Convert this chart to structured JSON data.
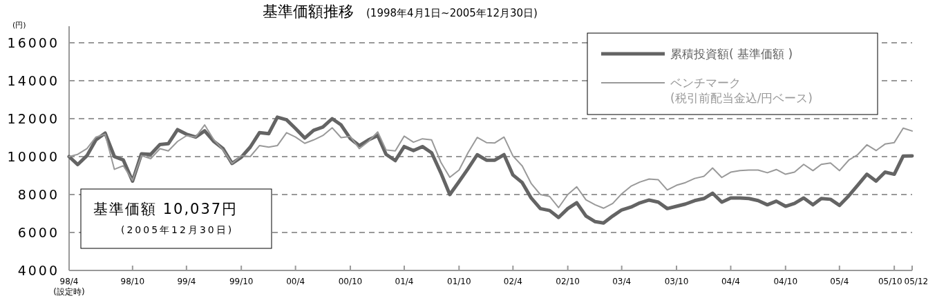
{
  "chart_data": {
    "type": "line",
    "title": "基準価額推移",
    "subtitle": "(1998年4月1日~2005年12月30日)",
    "ylabel": "(円)",
    "x": [
      "1998-04-01",
      "1998-04-30",
      "1998-05-31",
      "1998-06-30",
      "1998-07-31",
      "1998-08-31",
      "1998-09-30",
      "1998-10-31",
      "1998-11-30",
      "1998-12-31",
      "1999-01-31",
      "1999-02-28",
      "1999-03-31",
      "1999-04-30",
      "1999-05-31",
      "1999-06-30",
      "1999-07-31",
      "1999-08-31",
      "1999-09-30",
      "1999-10-31",
      "1999-11-30",
      "1999-12-31",
      "2000-01-31",
      "2000-02-29",
      "2000-03-31",
      "2000-04-30",
      "2000-05-31",
      "2000-06-30",
      "2000-07-31",
      "2000-08-31",
      "2000-09-30",
      "2000-10-31",
      "2000-11-30",
      "2000-12-31",
      "2001-01-31",
      "2001-02-28",
      "2001-03-31",
      "2001-04-30",
      "2001-05-31",
      "2001-06-30",
      "2001-07-31",
      "2001-08-31",
      "2001-09-30",
      "2001-10-31",
      "2001-11-30",
      "2001-12-31",
      "2002-01-31",
      "2002-02-28",
      "2002-03-31",
      "2002-04-30",
      "2002-05-31",
      "2002-06-30",
      "2002-07-31",
      "2002-08-31",
      "2002-09-30",
      "2002-10-31",
      "2002-11-30",
      "2002-12-31",
      "2003-01-31",
      "2003-02-28",
      "2003-03-31",
      "2003-04-30",
      "2003-05-31",
      "2003-06-30",
      "2003-07-31",
      "2003-08-31",
      "2003-09-30",
      "2003-10-31",
      "2003-11-30",
      "2003-12-31",
      "2004-01-31",
      "2004-02-29",
      "2004-03-31",
      "2004-04-30",
      "2004-05-31",
      "2004-06-30",
      "2004-07-31",
      "2004-08-31",
      "2004-09-30",
      "2004-10-31",
      "2004-11-30",
      "2004-12-31",
      "2005-01-31",
      "2005-02-28",
      "2005-03-31",
      "2005-04-30",
      "2005-05-31",
      "2005-06-30",
      "2005-07-31",
      "2005-08-31",
      "2005-09-30",
      "2005-10-31",
      "2005-11-30",
      "2005-12-30"
    ],
    "series": [
      {
        "name": "累積投資額( 基準価額 )",
        "color": "#646464",
        "values": [
          10000,
          9580,
          10050,
          10880,
          11240,
          10000,
          9820,
          8710,
          10150,
          10120,
          10640,
          10680,
          11420,
          11180,
          11030,
          11360,
          10800,
          10420,
          9640,
          9970,
          10500,
          11260,
          11210,
          12080,
          11940,
          11480,
          10980,
          11390,
          11560,
          12000,
          11670,
          10950,
          10580,
          10880,
          11110,
          10120,
          9790,
          10530,
          10320,
          10530,
          10200,
          9140,
          8000,
          8680,
          9360,
          10100,
          9810,
          9810,
          10100,
          9030,
          8630,
          7820,
          7260,
          7160,
          6790,
          7260,
          7570,
          6870,
          6570,
          6500,
          6870,
          7190,
          7340,
          7560,
          7710,
          7600,
          7260,
          7380,
          7500,
          7680,
          7790,
          8070,
          7600,
          7820,
          7820,
          7790,
          7680,
          7460,
          7650,
          7380,
          7530,
          7820,
          7460,
          7790,
          7750,
          7430,
          7930,
          8490,
          9070,
          8710,
          9180,
          9070,
          10030,
          10037
        ]
      },
      {
        "name": "ベンチマーク\n(税引前配当金込/円ベース)",
        "color": "#999999",
        "values": [
          10000,
          10120,
          10420,
          11030,
          11180,
          9330,
          9520,
          8750,
          10050,
          9890,
          10420,
          10300,
          10800,
          11100,
          11030,
          11670,
          10880,
          10350,
          9640,
          10050,
          10000,
          10580,
          10500,
          10580,
          11260,
          11030,
          10700,
          10880,
          11110,
          11520,
          11000,
          11060,
          10420,
          10800,
          11300,
          10350,
          10300,
          11080,
          10760,
          10940,
          10880,
          9700,
          8910,
          9290,
          10200,
          11010,
          10740,
          10720,
          11030,
          10030,
          9510,
          8590,
          8000,
          7900,
          7310,
          8000,
          8410,
          7720,
          7460,
          7280,
          7530,
          8040,
          8440,
          8660,
          8820,
          8780,
          8240,
          8490,
          8630,
          8850,
          8960,
          9400,
          8900,
          9180,
          9260,
          9290,
          9290,
          9150,
          9320,
          9070,
          9180,
          9590,
          9260,
          9590,
          9660,
          9260,
          9810,
          10100,
          10620,
          10320,
          10660,
          10740,
          11500,
          11350
        ]
      }
    ],
    "ylim": [
      4000,
      16000
    ],
    "yticks": [
      4000,
      6000,
      8000,
      10000,
      12000,
      14000,
      16000
    ],
    "xlim": [
      "1998-04-01",
      "2005-12-30"
    ],
    "xticks": [
      {
        "value": "1998-04-01",
        "label": "98/4\n(設定時)"
      },
      {
        "value": "1998-10-31",
        "label": "98/10"
      },
      {
        "value": "1999-04-30",
        "label": "99/4"
      },
      {
        "value": "1999-10-31",
        "label": "99/10"
      },
      {
        "value": "2000-04-30",
        "label": "00/4"
      },
      {
        "value": "2000-10-31",
        "label": "00/10"
      },
      {
        "value": "2001-04-30",
        "label": "01/4"
      },
      {
        "value": "2001-10-31",
        "label": "01/10"
      },
      {
        "value": "2002-04-30",
        "label": "02/4"
      },
      {
        "value": "2002-10-31",
        "label": "02/10"
      },
      {
        "value": "2003-04-30",
        "label": "03/4"
      },
      {
        "value": "2003-10-31",
        "label": "03/10"
      },
      {
        "value": "2004-04-30",
        "label": "04/4"
      },
      {
        "value": "2004-10-31",
        "label": "04/10"
      },
      {
        "value": "2005-04-30",
        "label": "05/4"
      },
      {
        "value": "2005-10-31",
        "label": "05/10"
      },
      {
        "value": "2005-12-30",
        "label": "05/12"
      }
    ],
    "grid": "y",
    "legend": "top right",
    "marker": "none",
    "line_style": "solid",
    "annotations": [
      "基準価額 10,037円",
      "(2005年12月30日)"
    ]
  }
}
